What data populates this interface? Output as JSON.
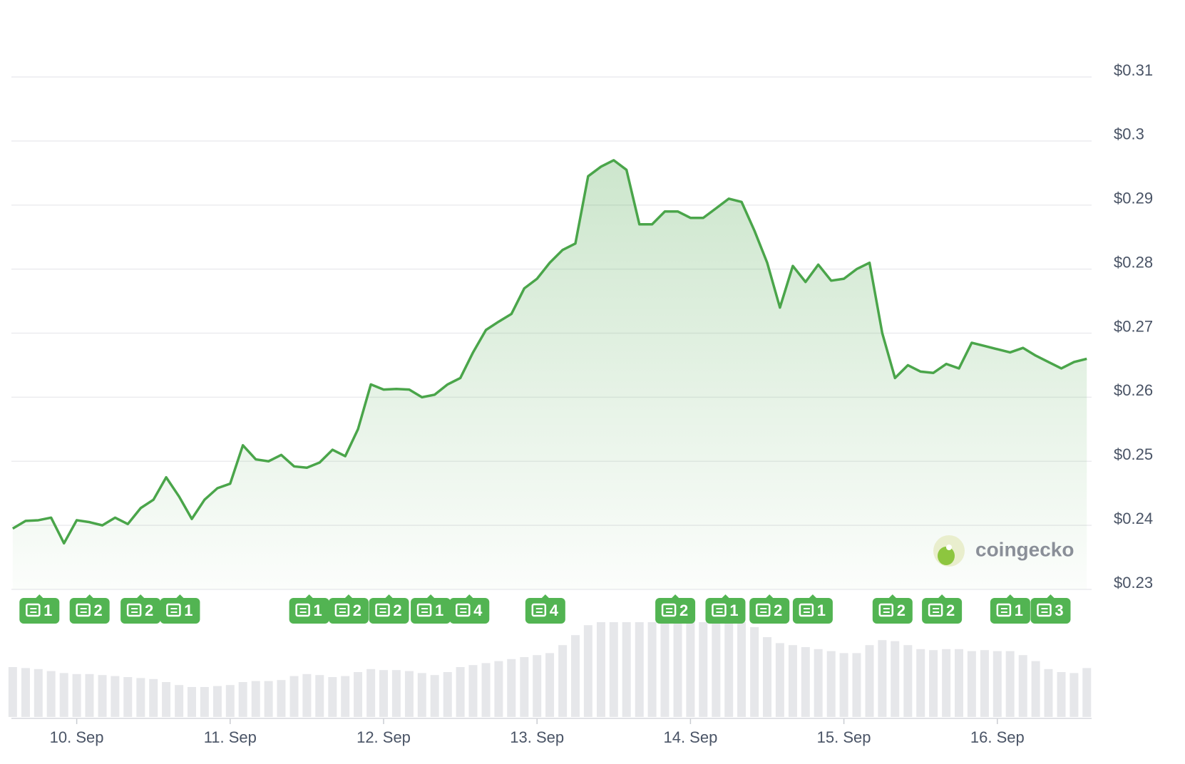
{
  "chart_data": {
    "type": "line",
    "color": "#4aa54a",
    "x": [
      9.583,
      9.667,
      9.75,
      9.833,
      9.917,
      10,
      10.083,
      10.167,
      10.25,
      10.333,
      10.417,
      10.5,
      10.583,
      10.667,
      10.75,
      10.833,
      10.917,
      11,
      11.083,
      11.167,
      11.25,
      11.333,
      11.417,
      11.5,
      11.583,
      11.667,
      11.75,
      11.833,
      11.917,
      12,
      12.083,
      12.167,
      12.25,
      12.333,
      12.417,
      12.5,
      12.583,
      12.667,
      12.75,
      12.833,
      12.917,
      13,
      13.083,
      13.167,
      13.25,
      13.333,
      13.417,
      13.5,
      13.583,
      13.667,
      13.75,
      13.833,
      13.917,
      14,
      14.083,
      14.167,
      14.25,
      14.333,
      14.417,
      14.5,
      14.583,
      14.667,
      14.75,
      14.833,
      14.917,
      15,
      15.083,
      15.167,
      15.25,
      15.333,
      15.417,
      15.5,
      15.583,
      15.667,
      15.75,
      15.833,
      15.917,
      16,
      16.083,
      16.167,
      16.25,
      16.333,
      16.417,
      16.5,
      16.583
    ],
    "values": [
      0.2395,
      0.2407,
      0.2408,
      0.2412,
      0.2372,
      0.2408,
      0.2405,
      0.24,
      0.2412,
      0.2402,
      0.2427,
      0.244,
      0.2475,
      0.2445,
      0.241,
      0.244,
      0.2458,
      0.2465,
      0.2525,
      0.2503,
      0.25,
      0.251,
      0.2492,
      0.249,
      0.2498,
      0.2518,
      0.2508,
      0.255,
      0.262,
      0.2612,
      0.2613,
      0.2612,
      0.26,
      0.2604,
      0.262,
      0.263,
      0.267,
      0.2705,
      0.2718,
      0.273,
      0.277,
      0.2785,
      0.281,
      0.283,
      0.284,
      0.2945,
      0.296,
      0.297,
      0.2955,
      0.287,
      0.287,
      0.289,
      0.289,
      0.288,
      0.288,
      0.2895,
      0.291,
      0.2905,
      0.286,
      0.281,
      0.274,
      0.2805,
      0.278,
      0.2807,
      0.2782,
      0.2785,
      0.28,
      0.281,
      0.27,
      0.263,
      0.265,
      0.264,
      0.2638,
      0.2652,
      0.2645,
      0.2685,
      0.268,
      0.2675,
      0.267,
      0.2677,
      0.2665,
      0.2655,
      0.2645,
      0.2655,
      0.266
    ],
    "volume": [
      50,
      49,
      48,
      46,
      44,
      43,
      43,
      42,
      41,
      40,
      39,
      38,
      35,
      32,
      30,
      30,
      31,
      32,
      35,
      36,
      36,
      37,
      41,
      43,
      42,
      40,
      41,
      45,
      48,
      47,
      47,
      46,
      44,
      42,
      45,
      50,
      52,
      54,
      56,
      58,
      60,
      62,
      64,
      72,
      82,
      92,
      95,
      95,
      95,
      95,
      95,
      95,
      95,
      95,
      95,
      95,
      95,
      95,
      90,
      80,
      74,
      72,
      70,
      68,
      66,
      64,
      64,
      72,
      77,
      76,
      72,
      68,
      67,
      68,
      68,
      66,
      67,
      66,
      66,
      62,
      56,
      48,
      45,
      44,
      49
    ],
    "volume_color": "#e6e7ea",
    "y2lim": [
      0,
      100
    ],
    "xlim": [
      9.574,
      16.594
    ],
    "xticks": [
      {
        "value": 10,
        "label": "10. Sep"
      },
      {
        "value": 11,
        "label": "11. Sep"
      },
      {
        "value": 12,
        "label": "12. Sep"
      },
      {
        "value": 13,
        "label": "13. Sep"
      },
      {
        "value": 14,
        "label": "14. Sep"
      },
      {
        "value": 15,
        "label": "15. Sep"
      },
      {
        "value": 16,
        "label": "16. Sep"
      }
    ],
    "ylim": [
      0.23,
      0.31
    ],
    "yticks": [
      {
        "value": 0.31,
        "label": "$0.31"
      },
      {
        "value": 0.3,
        "label": "$0.3"
      },
      {
        "value": 0.29,
        "label": "$0.29"
      },
      {
        "value": 0.28,
        "label": "$0.28"
      },
      {
        "value": 0.27,
        "label": "$0.27"
      },
      {
        "value": 0.26,
        "label": "$0.26"
      },
      {
        "value": 0.25,
        "label": "$0.25"
      },
      {
        "value": 0.24,
        "label": "$0.24"
      },
      {
        "value": 0.23,
        "label": "$0.23"
      }
    ],
    "grid": true,
    "annotations": [
      {
        "x": 9.757,
        "text": "1"
      },
      {
        "x": 10.084,
        "text": "2"
      },
      {
        "x": 10.416,
        "text": "2"
      },
      {
        "x": 10.673,
        "text": "1"
      },
      {
        "x": 11.515,
        "text": "1"
      },
      {
        "x": 11.772,
        "text": "2"
      },
      {
        "x": 12.035,
        "text": "2"
      },
      {
        "x": 12.307,
        "text": "1"
      },
      {
        "x": 12.559,
        "text": "4"
      },
      {
        "x": 13.054,
        "text": "4"
      },
      {
        "x": 13.901,
        "text": "2"
      },
      {
        "x": 14.228,
        "text": "1"
      },
      {
        "x": 14.515,
        "text": "2"
      },
      {
        "x": 14.797,
        "text": "1"
      },
      {
        "x": 15.317,
        "text": "2"
      },
      {
        "x": 15.639,
        "text": "2"
      },
      {
        "x": 16.084,
        "text": "1"
      },
      {
        "x": 16.347,
        "text": "3"
      }
    ],
    "annotation_color": "#52b452",
    "watermark": "coingecko"
  }
}
